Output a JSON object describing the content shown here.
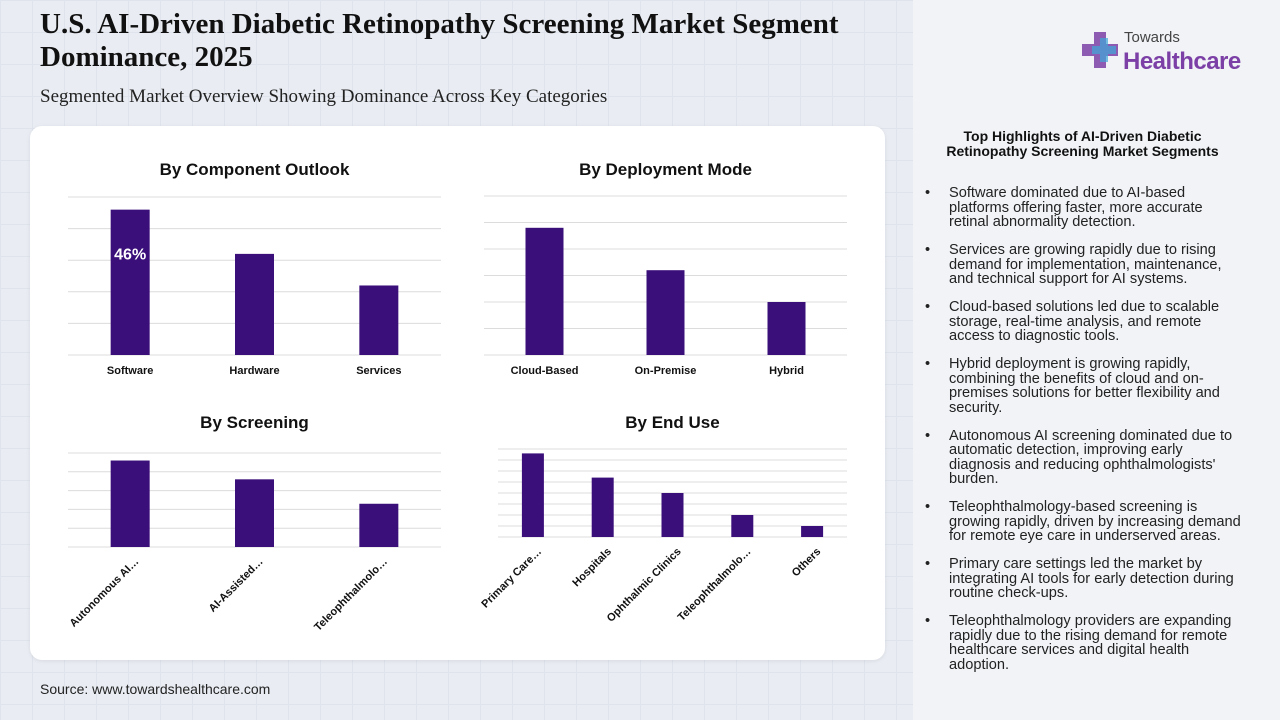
{
  "header": {
    "title": "U.S. AI-Driven Diabetic Retinopathy Screening Market Segment Dominance, 2025",
    "subtitle": "Segmented Market Overview Showing Dominance Across Key Categories"
  },
  "logo": {
    "line1": "Towards",
    "line2": "Healthcare"
  },
  "source": "Source: www.towardshealthcare.com",
  "highlights": {
    "title": "Top Highlights of AI-Driven Diabetic Retinopathy Screening Market Segments",
    "items": [
      "Software dominated due to AI-based platforms offering faster, more accurate retinal abnormality detection.",
      "Services are growing rapidly due to rising demand for implementation, maintenance, and technical support for AI systems.",
      "Cloud-based solutions led due to scalable storage, real-time analysis, and remote access to diagnostic tools.",
      "Hybrid deployment is growing rapidly, combining the benefits of cloud and on-premises solutions for better flexibility and security.",
      "Autonomous AI screening dominated due to automatic detection, improving early diagnosis and reducing ophthalmologists' burden.",
      "Teleophthalmology-based screening is growing rapidly, driven by increasing demand for remote eye care in underserved areas.",
      "Primary care settings led the market by integrating AI tools for early detection during routine check-ups.",
      "Teleophthalmology providers are expanding rapidly due to the rising demand for remote healthcare services and digital health adoption."
    ]
  },
  "chart_data": [
    {
      "type": "bar",
      "title": "By Component Outlook",
      "categories": [
        "Software",
        "Hardware",
        "Services"
      ],
      "values": [
        46,
        32,
        22
      ],
      "value_labels": [
        "46%",
        null,
        null
      ],
      "color": "#3a0f7a",
      "ylim": [
        0,
        50
      ],
      "yticks": [
        0,
        10,
        20,
        30,
        40,
        50
      ],
      "grid": true
    },
    {
      "type": "bar",
      "title": "By Deployment Mode",
      "categories": [
        "Cloud-Based",
        "On-Premise",
        "Hybrid"
      ],
      "values": [
        48,
        32,
        20
      ],
      "color": "#3a0f7a",
      "ylim": [
        0,
        60
      ],
      "yticks": [
        0,
        10,
        20,
        30,
        40,
        50,
        60
      ],
      "grid": true
    },
    {
      "type": "bar",
      "title": "By Screening",
      "categories": [
        "Autonomous AI…",
        "AI-Assisted…",
        "Teleophthalmolo…"
      ],
      "values": [
        46,
        36,
        23
      ],
      "color": "#3a0f7a",
      "ylim": [
        0,
        50
      ],
      "yticks": [
        0,
        10,
        20,
        30,
        40,
        50
      ],
      "grid": true
    },
    {
      "type": "bar",
      "title": "By End Use",
      "categories": [
        "Primary Care…",
        "Hospitals",
        "Ophthalmic Clinics",
        "Teleophthalmolo…",
        "Others"
      ],
      "values": [
        38,
        27,
        20,
        10,
        5
      ],
      "color": "#3a0f7a",
      "ylim": [
        0,
        40
      ],
      "yticks": [
        0,
        5,
        10,
        15,
        20,
        25,
        30,
        35,
        40
      ],
      "grid": true
    }
  ]
}
